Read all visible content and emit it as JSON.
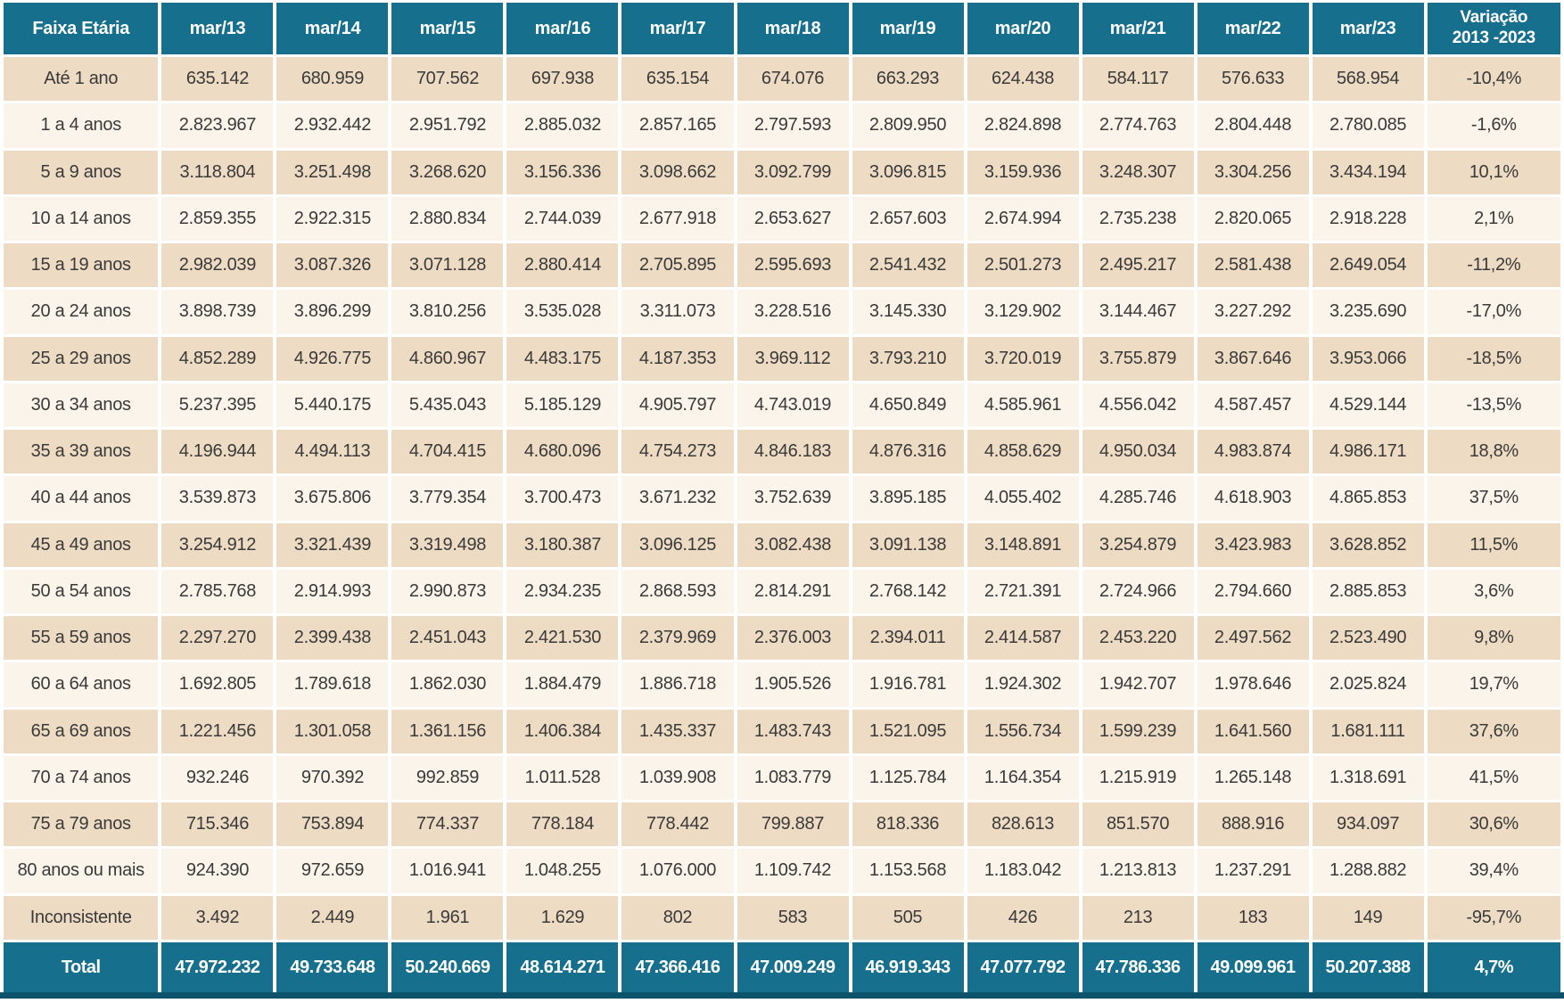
{
  "table": {
    "columns": [
      "Faixa Etária",
      "mar/13",
      "mar/14",
      "mar/15",
      "mar/16",
      "mar/17",
      "mar/18",
      "mar/19",
      "mar/20",
      "mar/21",
      "mar/22",
      "mar/23",
      "Variação\n2013 -2023"
    ],
    "rows": [
      {
        "label": "Até 1 ano",
        "values": [
          "635.142",
          "680.959",
          "707.562",
          "697.938",
          "635.154",
          "674.076",
          "663.293",
          "624.438",
          "584.117",
          "576.633",
          "568.954"
        ],
        "variation": "-10,4%"
      },
      {
        "label": "1 a 4 anos",
        "values": [
          "2.823.967",
          "2.932.442",
          "2.951.792",
          "2.885.032",
          "2.857.165",
          "2.797.593",
          "2.809.950",
          "2.824.898",
          "2.774.763",
          "2.804.448",
          "2.780.085"
        ],
        "variation": "-1,6%"
      },
      {
        "label": "5 a 9 anos",
        "values": [
          "3.118.804",
          "3.251.498",
          "3.268.620",
          "3.156.336",
          "3.098.662",
          "3.092.799",
          "3.096.815",
          "3.159.936",
          "3.248.307",
          "3.304.256",
          "3.434.194"
        ],
        "variation": "10,1%"
      },
      {
        "label": "10 a 14 anos",
        "values": [
          "2.859.355",
          "2.922.315",
          "2.880.834",
          "2.744.039",
          "2.677.918",
          "2.653.627",
          "2.657.603",
          "2.674.994",
          "2.735.238",
          "2.820.065",
          "2.918.228"
        ],
        "variation": "2,1%"
      },
      {
        "label": "15 a 19 anos",
        "values": [
          "2.982.039",
          "3.087.326",
          "3.071.128",
          "2.880.414",
          "2.705.895",
          "2.595.693",
          "2.541.432",
          "2.501.273",
          "2.495.217",
          "2.581.438",
          "2.649.054"
        ],
        "variation": "-11,2%"
      },
      {
        "label": "20 a 24 anos",
        "values": [
          "3.898.739",
          "3.896.299",
          "3.810.256",
          "3.535.028",
          "3.311.073",
          "3.228.516",
          "3.145.330",
          "3.129.902",
          "3.144.467",
          "3.227.292",
          "3.235.690"
        ],
        "variation": "-17,0%"
      },
      {
        "label": "25 a 29 anos",
        "values": [
          "4.852.289",
          "4.926.775",
          "4.860.967",
          "4.483.175",
          "4.187.353",
          "3.969.112",
          "3.793.210",
          "3.720.019",
          "3.755.879",
          "3.867.646",
          "3.953.066"
        ],
        "variation": "-18,5%"
      },
      {
        "label": "30 a 34 anos",
        "values": [
          "5.237.395",
          "5.440.175",
          "5.435.043",
          "5.185.129",
          "4.905.797",
          "4.743.019",
          "4.650.849",
          "4.585.961",
          "4.556.042",
          "4.587.457",
          "4.529.144"
        ],
        "variation": "-13,5%"
      },
      {
        "label": "35 a 39 anos",
        "values": [
          "4.196.944",
          "4.494.113",
          "4.704.415",
          "4.680.096",
          "4.754.273",
          "4.846.183",
          "4.876.316",
          "4.858.629",
          "4.950.034",
          "4.983.874",
          "4.986.171"
        ],
        "variation": "18,8%"
      },
      {
        "label": "40 a 44 anos",
        "values": [
          "3.539.873",
          "3.675.806",
          "3.779.354",
          "3.700.473",
          "3.671.232",
          "3.752.639",
          "3.895.185",
          "4.055.402",
          "4.285.746",
          "4.618.903",
          "4.865.853"
        ],
        "variation": "37,5%"
      },
      {
        "label": "45 a 49 anos",
        "values": [
          "3.254.912",
          "3.321.439",
          "3.319.498",
          "3.180.387",
          "3.096.125",
          "3.082.438",
          "3.091.138",
          "3.148.891",
          "3.254.879",
          "3.423.983",
          "3.628.852"
        ],
        "variation": "11,5%"
      },
      {
        "label": "50 a 54 anos",
        "values": [
          "2.785.768",
          "2.914.993",
          "2.990.873",
          "2.934.235",
          "2.868.593",
          "2.814.291",
          "2.768.142",
          "2.721.391",
          "2.724.966",
          "2.794.660",
          "2.885.853"
        ],
        "variation": "3,6%"
      },
      {
        "label": "55 a 59 anos",
        "values": [
          "2.297.270",
          "2.399.438",
          "2.451.043",
          "2.421.530",
          "2.379.969",
          "2.376.003",
          "2.394.011",
          "2.414.587",
          "2.453.220",
          "2.497.562",
          "2.523.490"
        ],
        "variation": "9,8%"
      },
      {
        "label": "60 a 64 anos",
        "values": [
          "1.692.805",
          "1.789.618",
          "1.862.030",
          "1.884.479",
          "1.886.718",
          "1.905.526",
          "1.916.781",
          "1.924.302",
          "1.942.707",
          "1.978.646",
          "2.025.824"
        ],
        "variation": "19,7%"
      },
      {
        "label": "65 a 69 anos",
        "values": [
          "1.221.456",
          "1.301.058",
          "1.361.156",
          "1.406.384",
          "1.435.337",
          "1.483.743",
          "1.521.095",
          "1.556.734",
          "1.599.239",
          "1.641.560",
          "1.681.111"
        ],
        "variation": "37,6%"
      },
      {
        "label": "70 a 74 anos",
        "values": [
          "932.246",
          "970.392",
          "992.859",
          "1.011.528",
          "1.039.908",
          "1.083.779",
          "1.125.784",
          "1.164.354",
          "1.215.919",
          "1.265.148",
          "1.318.691"
        ],
        "variation": "41,5%"
      },
      {
        "label": "75 a 79 anos",
        "values": [
          "715.346",
          "753.894",
          "774.337",
          "778.184",
          "778.442",
          "799.887",
          "818.336",
          "828.613",
          "851.570",
          "888.916",
          "934.097"
        ],
        "variation": "30,6%"
      },
      {
        "label": "80 anos ou mais",
        "values": [
          "924.390",
          "972.659",
          "1.016.941",
          "1.048.255",
          "1.076.000",
          "1.109.742",
          "1.153.568",
          "1.183.042",
          "1.213.813",
          "1.237.291",
          "1.288.882"
        ],
        "variation": "39,4%"
      },
      {
        "label": "Inconsistente",
        "values": [
          "3.492",
          "2.449",
          "1.961",
          "1.629",
          "802",
          "583",
          "505",
          "426",
          "213",
          "183",
          "149"
        ],
        "variation": "-95,7%"
      }
    ],
    "total": {
      "label": "Total",
      "values": [
        "47.972.232",
        "49.733.648",
        "50.240.669",
        "48.614.271",
        "47.366.416",
        "47.009.249",
        "46.919.343",
        "47.077.792",
        "47.786.336",
        "49.099.961",
        "50.207.388"
      ],
      "variation": "4,7%"
    }
  },
  "colors": {
    "header_bg": "#156f8d",
    "total_bg": "#156f8d",
    "row_tan": "#eddbc3",
    "row_light": "#faf4eb",
    "bottom_border": "#0c526b",
    "cell_text": "#3a3a3a",
    "header_text": "#ffffff"
  }
}
